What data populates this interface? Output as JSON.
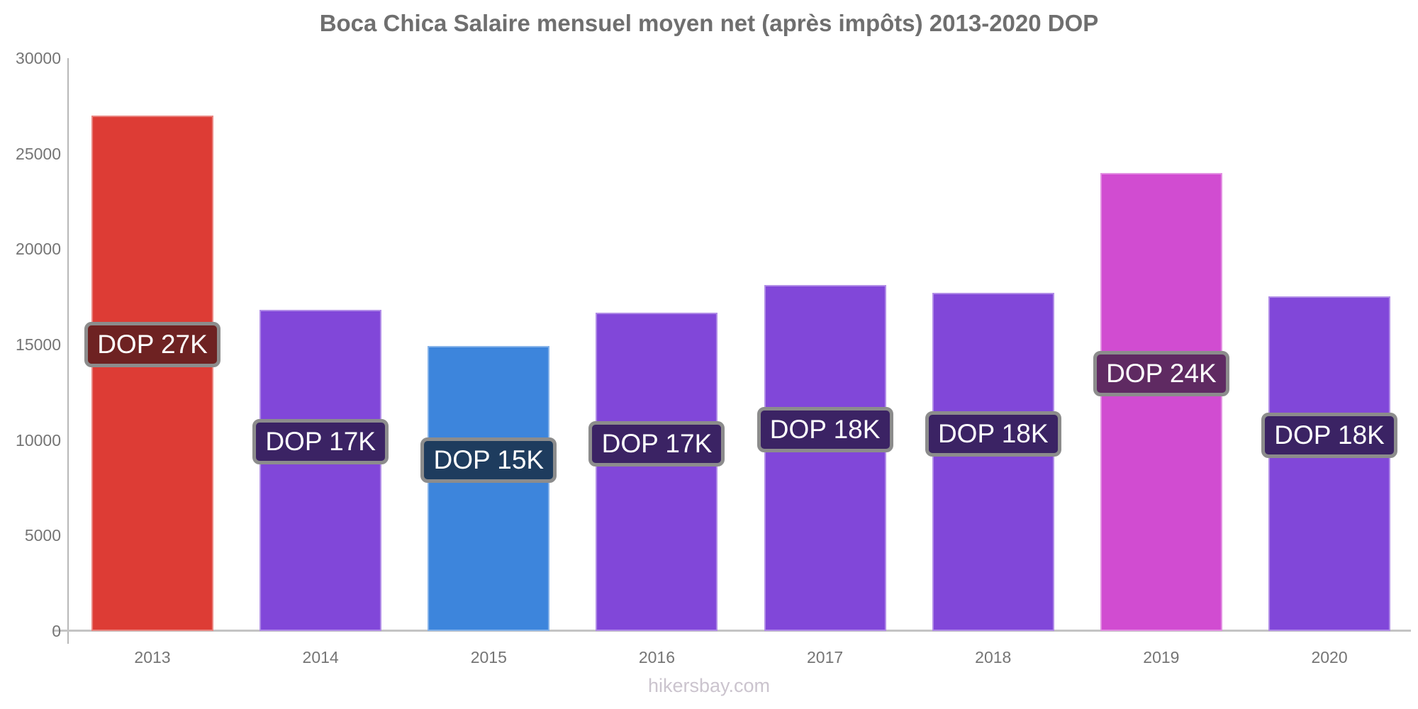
{
  "page": {
    "background_color": "#ffffff"
  },
  "chart_data": {
    "type": "bar",
    "title": "Boca Chica Salaire mensuel moyen net (après impôts) 2013-2020 DOP",
    "xlabel": "",
    "ylabel": "",
    "categories": [
      "2013",
      "2014",
      "2015",
      "2016",
      "2017",
      "2018",
      "2019",
      "2020"
    ],
    "values": [
      27000,
      16820,
      14930,
      16670,
      18120,
      17710,
      24000,
      17530
    ],
    "bar_value_labels": [
      "DOP 27K",
      "DOP 17K",
      "DOP 15K",
      "DOP 17K",
      "DOP 18K",
      "DOP 18K",
      "DOP 24K",
      "DOP 18K"
    ],
    "bar_colors": [
      "#dd3c35",
      "#8147d9",
      "#3d85dc",
      "#8147d9",
      "#8147d9",
      "#8147d9",
      "#d14cd1",
      "#8147d9"
    ],
    "value_label_bg_colors": [
      "#6e2222",
      "#3b2364",
      "#1e3c5e",
      "#3b2364",
      "#3b2364",
      "#3b2364",
      "#5f2a62",
      "#3b2364"
    ],
    "value_label_text_color": "#ffffff",
    "value_label_border_color": "#8c8c8c",
    "y_ticks": [
      0,
      5000,
      10000,
      15000,
      20000,
      25000,
      30000
    ],
    "ylim": [
      0,
      30000
    ],
    "grid": false,
    "legend": false,
    "currency": "DOP",
    "title_color": "#6f6f6f",
    "tick_label_color": "#757575",
    "axis_line_color": "#b8b8b8",
    "baseline_color": "#c4c4c4"
  },
  "footer": {
    "text": "hikersbay.com",
    "color": "#cbc4ce"
  }
}
